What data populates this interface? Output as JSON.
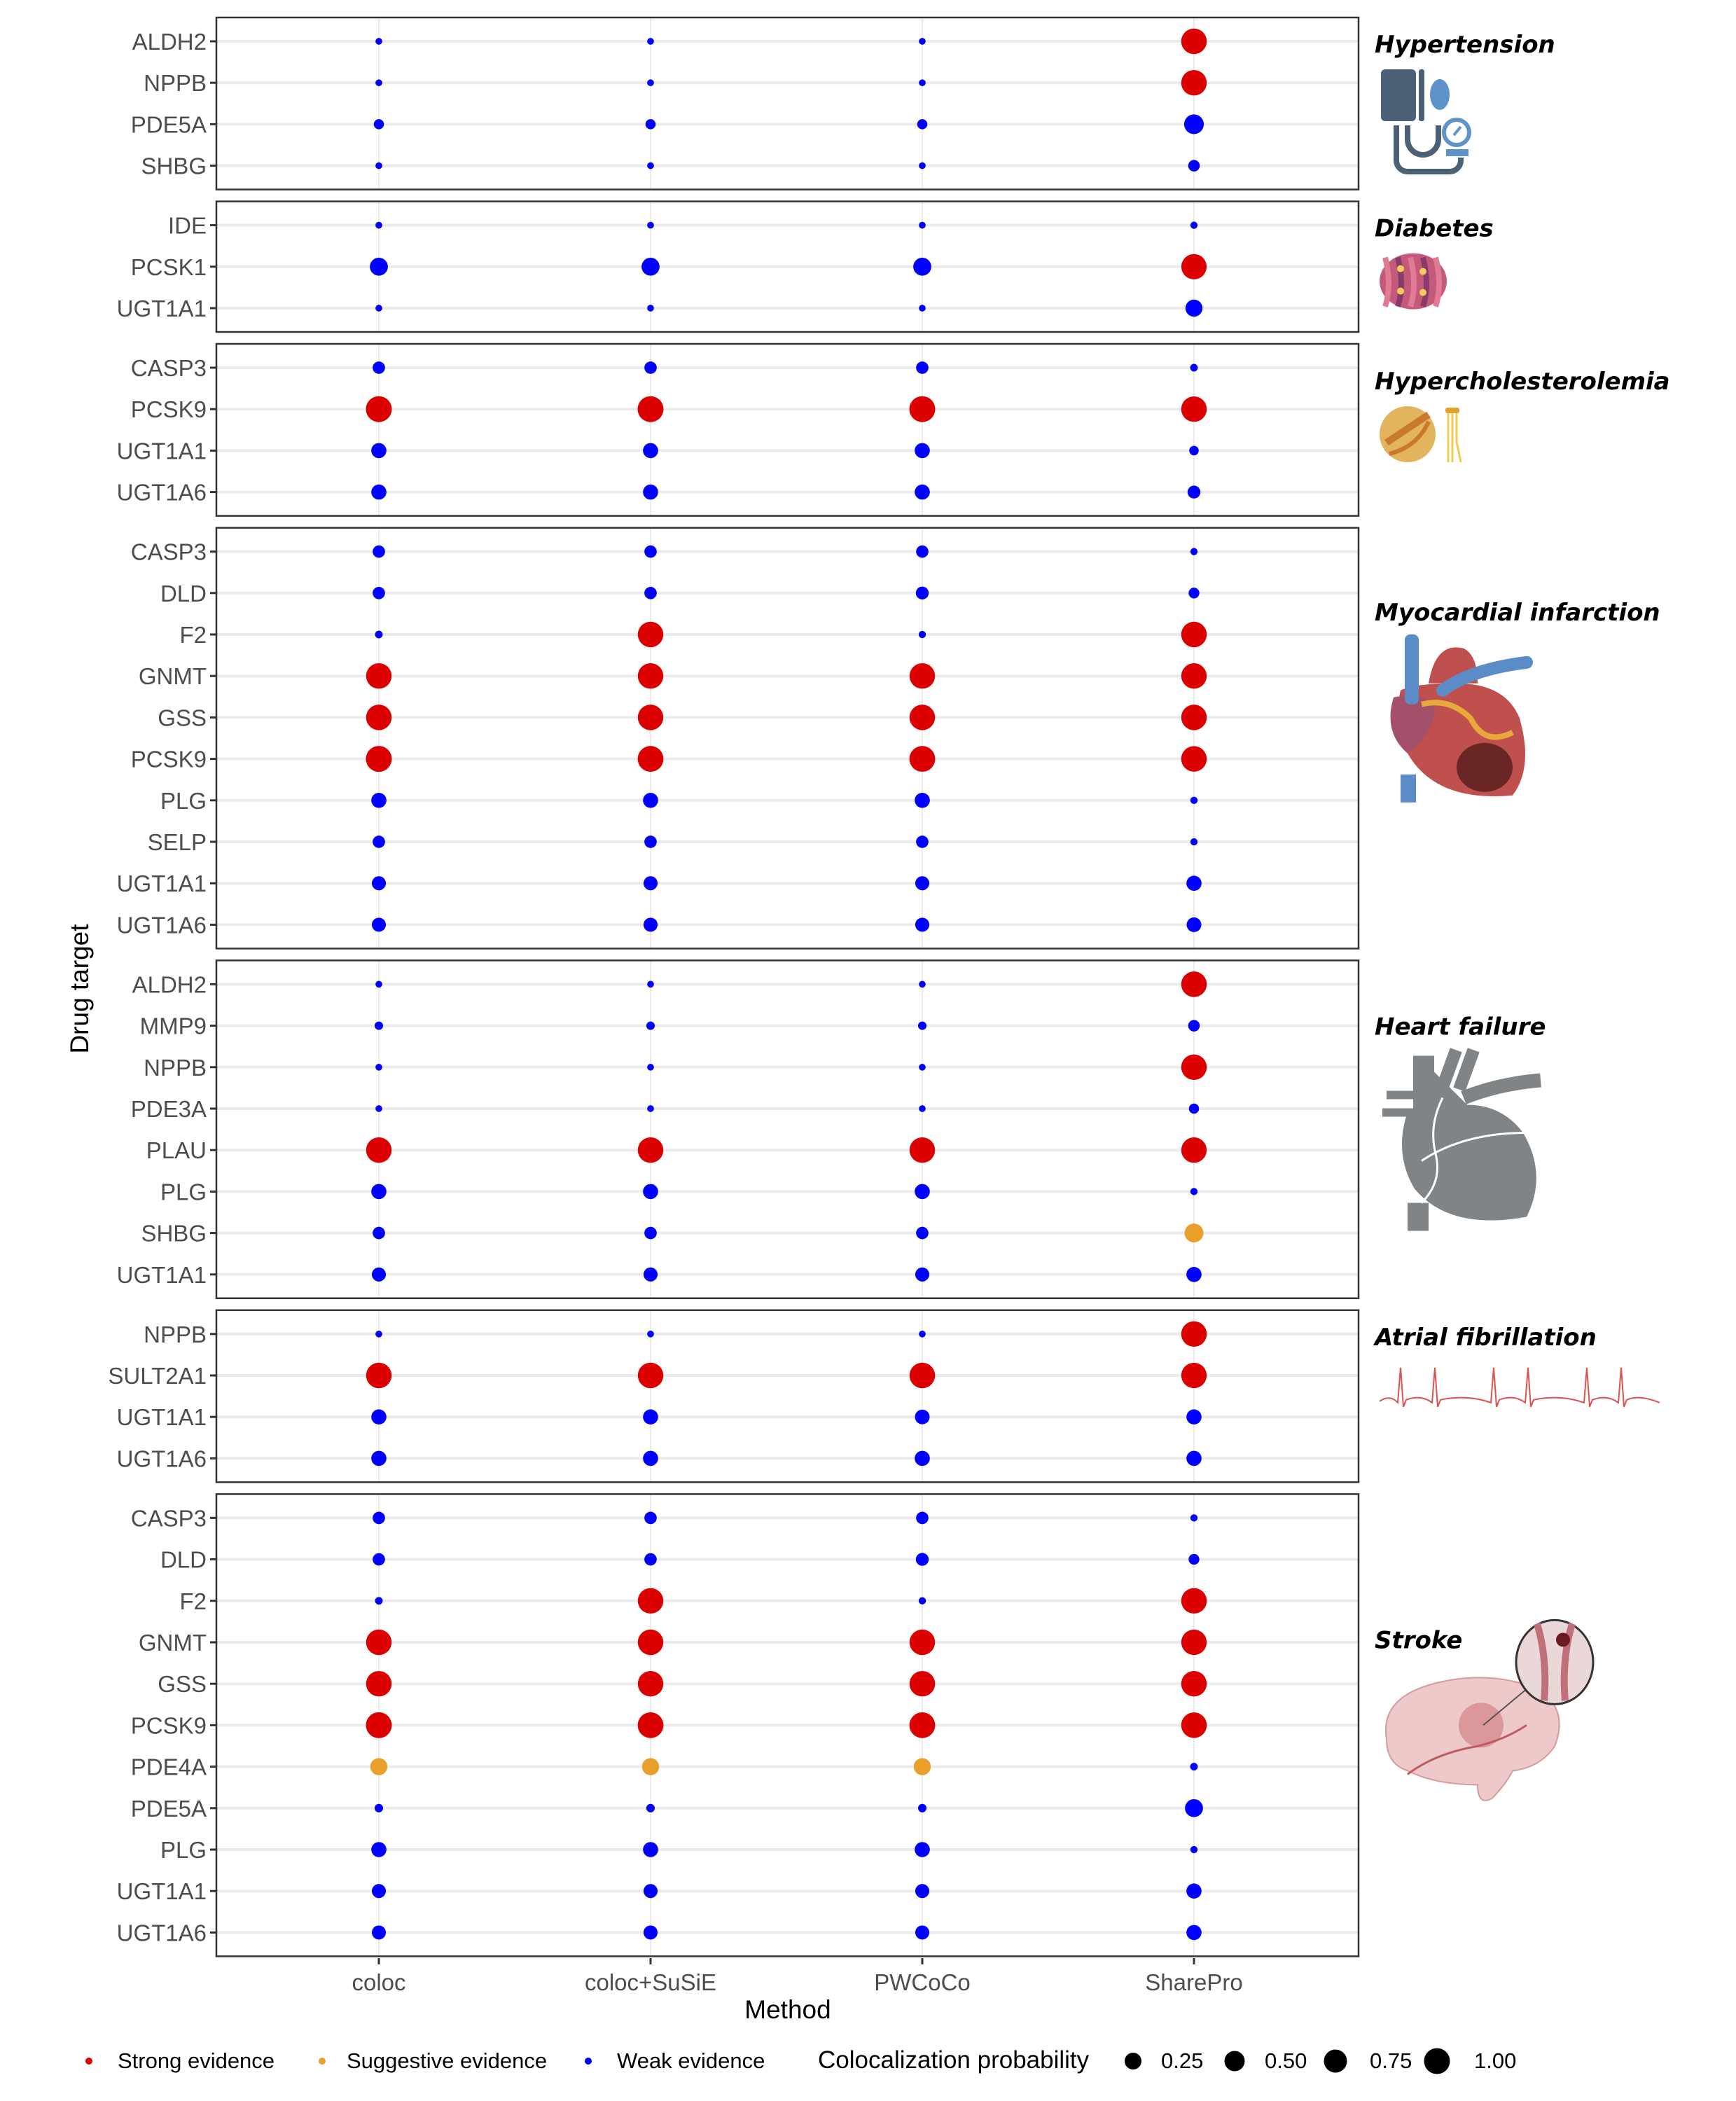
{
  "chart_data": {
    "type": "scatter",
    "subtype": "faceted dot plot",
    "xlabel": "Method",
    "ylabel": "Drug target",
    "methods": [
      "coloc",
      "coloc+SuSiE",
      "PWCoCo",
      "SharePro"
    ],
    "grid": true,
    "legend": {
      "placement": "bottom",
      "color_title": "",
      "color_entries": [
        {
          "key": "strong",
          "label": "Strong evidence",
          "color": "#DD0000"
        },
        {
          "key": "suggestive",
          "label": "Suggestive evidence",
          "color": "#E8A02A"
        },
        {
          "key": "weak",
          "label": "Weak evidence",
          "color": "#0000FF"
        }
      ],
      "size_title": "Colocalization probability",
      "size_entries": [
        {
          "label": "0.25",
          "value": 0.25
        },
        {
          "label": "0.50",
          "value": 0.5
        },
        {
          "label": "0.75",
          "value": 0.75
        },
        {
          "label": "1.00",
          "value": 1.0
        }
      ]
    },
    "panels": [
      {
        "disease": "Hypertension",
        "icon": "blood-pressure-monitor-icon",
        "targets": [
          "ALDH2",
          "NPPB",
          "PDE5A",
          "SHBG"
        ],
        "values": [
          [
            0.01,
            0.01,
            0.01,
            0.97
          ],
          [
            0.01,
            0.01,
            0.01,
            0.97
          ],
          [
            0.1,
            0.1,
            0.1,
            0.55
          ],
          [
            0.01,
            0.01,
            0.01,
            0.15
          ]
        ],
        "evidence": [
          [
            "weak",
            "weak",
            "weak",
            "strong"
          ],
          [
            "weak",
            "weak",
            "weak",
            "strong"
          ],
          [
            "weak",
            "weak",
            "weak",
            "weak"
          ],
          [
            "weak",
            "weak",
            "weak",
            "weak"
          ]
        ]
      },
      {
        "disease": "Diabetes",
        "icon": "insulin-molecule-icon",
        "targets": [
          "IDE",
          "PCSK1",
          "UGT1A1"
        ],
        "values": [
          [
            0.01,
            0.01,
            0.01,
            0.02
          ],
          [
            0.45,
            0.45,
            0.45,
            0.95
          ],
          [
            0.01,
            0.01,
            0.01,
            0.4
          ]
        ],
        "evidence": [
          [
            "weak",
            "weak",
            "weak",
            "weak"
          ],
          [
            "weak",
            "weak",
            "weak",
            "strong"
          ],
          [
            "weak",
            "weak",
            "weak",
            "weak"
          ]
        ]
      },
      {
        "disease": "Hypercholesterolemia",
        "icon": "lipoprotein-icon",
        "targets": [
          "CASP3",
          "PCSK9",
          "UGT1A1",
          "UGT1A6"
        ],
        "values": [
          [
            0.18,
            0.18,
            0.18,
            0.03
          ],
          [
            1.0,
            1.0,
            1.0,
            0.97
          ],
          [
            0.3,
            0.3,
            0.3,
            0.08
          ],
          [
            0.3,
            0.3,
            0.3,
            0.2
          ]
        ],
        "evidence": [
          [
            "weak",
            "weak",
            "weak",
            "weak"
          ],
          [
            "strong",
            "strong",
            "strong",
            "strong"
          ],
          [
            "weak",
            "weak",
            "weak",
            "weak"
          ],
          [
            "weak",
            "weak",
            "weak",
            "weak"
          ]
        ]
      },
      {
        "disease": "Myocardial infarction",
        "icon": "heart-infarction-icon",
        "targets": [
          "CASP3",
          "DLD",
          "F2",
          "GNMT",
          "GSS",
          "PCSK9",
          "PLG",
          "SELP",
          "UGT1A1",
          "UGT1A6"
        ],
        "values": [
          [
            0.18,
            0.18,
            0.18,
            0.02
          ],
          [
            0.18,
            0.18,
            0.2,
            0.12
          ],
          [
            0.03,
            0.97,
            0.02,
            0.97
          ],
          [
            0.97,
            0.97,
            0.97,
            0.96
          ],
          [
            0.97,
            0.97,
            0.97,
            0.97
          ],
          [
            1.0,
            0.99,
            0.99,
            0.97
          ],
          [
            0.3,
            0.3,
            0.3,
            0.02
          ],
          [
            0.18,
            0.18,
            0.18,
            0.02
          ],
          [
            0.25,
            0.25,
            0.25,
            0.3
          ],
          [
            0.25,
            0.25,
            0.25,
            0.28
          ]
        ],
        "evidence": [
          [
            "weak",
            "weak",
            "weak",
            "weak"
          ],
          [
            "weak",
            "weak",
            "weak",
            "weak"
          ],
          [
            "weak",
            "strong",
            "weak",
            "strong"
          ],
          [
            "strong",
            "strong",
            "strong",
            "strong"
          ],
          [
            "strong",
            "strong",
            "strong",
            "strong"
          ],
          [
            "strong",
            "strong",
            "strong",
            "strong"
          ],
          [
            "weak",
            "weak",
            "weak",
            "weak"
          ],
          [
            "weak",
            "weak",
            "weak",
            "weak"
          ],
          [
            "weak",
            "weak",
            "weak",
            "weak"
          ],
          [
            "weak",
            "weak",
            "weak",
            "weak"
          ]
        ]
      },
      {
        "disease": "Heart failure",
        "icon": "heart-silhouette-icon",
        "targets": [
          "ALDH2",
          "MMP9",
          "NPPB",
          "PDE3A",
          "PLAU",
          "PLG",
          "SHBG",
          "UGT1A1"
        ],
        "values": [
          [
            0.01,
            0.01,
            0.01,
            0.97
          ],
          [
            0.05,
            0.05,
            0.05,
            0.15
          ],
          [
            0.01,
            0.01,
            0.01,
            0.97
          ],
          [
            0.01,
            0.01,
            0.01,
            0.1
          ],
          [
            0.97,
            0.97,
            0.97,
            0.96
          ],
          [
            0.3,
            0.3,
            0.3,
            0.02
          ],
          [
            0.18,
            0.18,
            0.18,
            0.5
          ],
          [
            0.25,
            0.25,
            0.25,
            0.3
          ]
        ],
        "evidence": [
          [
            "weak",
            "weak",
            "weak",
            "strong"
          ],
          [
            "weak",
            "weak",
            "weak",
            "weak"
          ],
          [
            "weak",
            "weak",
            "weak",
            "strong"
          ],
          [
            "weak",
            "weak",
            "weak",
            "weak"
          ],
          [
            "strong",
            "strong",
            "strong",
            "strong"
          ],
          [
            "weak",
            "weak",
            "weak",
            "weak"
          ],
          [
            "weak",
            "weak",
            "weak",
            "suggestive"
          ],
          [
            "weak",
            "weak",
            "weak",
            "weak"
          ]
        ]
      },
      {
        "disease": "Atrial fibrillation",
        "icon": "ecg-trace-icon",
        "targets": [
          "NPPB",
          "SULT2A1",
          "UGT1A1",
          "UGT1A6"
        ],
        "values": [
          [
            0.01,
            0.01,
            0.01,
            0.97
          ],
          [
            0.97,
            0.97,
            0.97,
            0.96
          ],
          [
            0.3,
            0.3,
            0.28,
            0.3
          ],
          [
            0.3,
            0.3,
            0.3,
            0.3
          ]
        ],
        "evidence": [
          [
            "weak",
            "weak",
            "weak",
            "strong"
          ],
          [
            "strong",
            "strong",
            "strong",
            "strong"
          ],
          [
            "weak",
            "weak",
            "weak",
            "weak"
          ],
          [
            "weak",
            "weak",
            "weak",
            "weak"
          ]
        ]
      },
      {
        "disease": "Stroke",
        "icon": "brain-stroke-icon",
        "targets": [
          "CASP3",
          "DLD",
          "F2",
          "GNMT",
          "GSS",
          "PCSK9",
          "PDE4A",
          "PDE5A",
          "PLG",
          "UGT1A1",
          "UGT1A6"
        ],
        "values": [
          [
            0.18,
            0.18,
            0.18,
            0.02
          ],
          [
            0.18,
            0.18,
            0.2,
            0.12
          ],
          [
            0.03,
            0.97,
            0.02,
            0.97
          ],
          [
            0.97,
            0.97,
            0.97,
            0.96
          ],
          [
            0.97,
            0.97,
            0.97,
            0.97
          ],
          [
            1.0,
            0.99,
            0.99,
            0.97
          ],
          [
            0.4,
            0.4,
            0.4,
            0.03
          ],
          [
            0.05,
            0.05,
            0.05,
            0.45
          ],
          [
            0.3,
            0.3,
            0.3,
            0.02
          ],
          [
            0.25,
            0.25,
            0.25,
            0.3
          ],
          [
            0.25,
            0.25,
            0.25,
            0.3
          ]
        ],
        "evidence": [
          [
            "weak",
            "weak",
            "weak",
            "weak"
          ],
          [
            "weak",
            "weak",
            "weak",
            "weak"
          ],
          [
            "weak",
            "strong",
            "weak",
            "strong"
          ],
          [
            "strong",
            "strong",
            "strong",
            "strong"
          ],
          [
            "strong",
            "strong",
            "strong",
            "strong"
          ],
          [
            "strong",
            "strong",
            "strong",
            "strong"
          ],
          [
            "suggestive",
            "suggestive",
            "suggestive",
            "weak"
          ],
          [
            "weak",
            "weak",
            "weak",
            "weak"
          ],
          [
            "weak",
            "weak",
            "weak",
            "weak"
          ],
          [
            "weak",
            "weak",
            "weak",
            "weak"
          ],
          [
            "weak",
            "weak",
            "weak",
            "weak"
          ]
        ]
      }
    ]
  }
}
